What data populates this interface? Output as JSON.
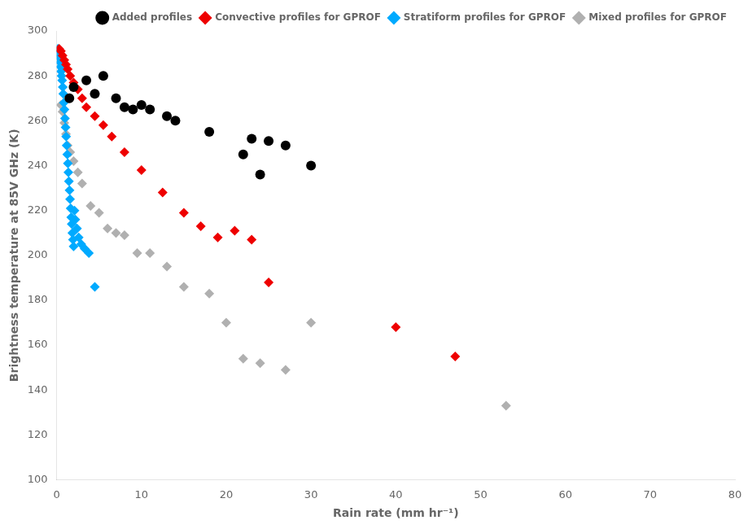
{
  "chart_data": {
    "type": "scatter",
    "x_label": "Rain rate (mm hr⁻¹)",
    "y_label": "Brightness temperature at 85V GHz (K)",
    "xlim": [
      0,
      80
    ],
    "ylim": [
      100,
      300
    ],
    "xticks": [
      0,
      10,
      20,
      30,
      40,
      50,
      60,
      70,
      80
    ],
    "yticks": [
      100,
      120,
      140,
      160,
      180,
      200,
      220,
      240,
      260,
      280,
      300
    ],
    "grid": false,
    "legend": "upper right",
    "series": [
      {
        "name": "Added profiles",
        "color": "#000000",
        "marker": "circle",
        "x": [
          1.5,
          2.0,
          3.5,
          4.5,
          5.5,
          7.0,
          8.0,
          9.0,
          10.0,
          11.0,
          13.0,
          14.0,
          18.0,
          22.0,
          23.0,
          24.0,
          25.0,
          27.0,
          30.0
        ],
        "values": [
          270,
          275,
          278,
          272,
          280,
          270,
          266,
          265,
          267,
          265,
          262,
          260,
          255,
          245,
          252,
          236,
          251,
          249,
          240
        ]
      },
      {
        "name": "Convective profiles for GPROF",
        "color": "#ee0000",
        "marker": "diamond",
        "x": [
          0.3,
          0.5,
          0.7,
          0.9,
          1.1,
          1.3,
          1.6,
          2.0,
          2.5,
          3.0,
          3.5,
          4.5,
          5.5,
          6.5,
          8.0,
          10.0,
          12.5,
          15.0,
          17.0,
          19.0,
          21.0,
          23.0,
          25.0,
          40.0,
          47.0
        ],
        "values": [
          292,
          291,
          289,
          287,
          285,
          283,
          280,
          277,
          274,
          270,
          266,
          262,
          258,
          253,
          246,
          238,
          228,
          219,
          213,
          208,
          211,
          207,
          188,
          168,
          155
        ]
      },
      {
        "name": "Stratiform profiles for GPROF",
        "color": "#00aaff",
        "marker": "diamond",
        "x": [
          0.15,
          0.25,
          0.32,
          0.38,
          0.45,
          0.52,
          0.58,
          0.65,
          0.72,
          0.78,
          0.85,
          0.92,
          0.98,
          1.05,
          1.12,
          1.18,
          1.25,
          1.32,
          1.38,
          1.45,
          1.52,
          1.58,
          1.65,
          1.72,
          1.78,
          1.85,
          1.92,
          2.0,
          2.1,
          2.2,
          2.4,
          2.6,
          2.9,
          3.3,
          3.8,
          4.5
        ],
        "values": [
          292,
          290,
          288,
          286,
          284,
          282,
          280,
          278,
          275,
          272,
          268,
          265,
          261,
          257,
          253,
          249,
          245,
          241,
          237,
          233,
          229,
          225,
          221,
          217,
          214,
          210,
          207,
          204,
          220,
          216,
          212,
          208,
          205,
          203,
          201,
          186
        ]
      },
      {
        "name": "Mixed profiles for GPROF",
        "color": "#b0b0b0",
        "marker": "diamond",
        "x": [
          0.5,
          0.7,
          0.9,
          1.1,
          1.3,
          1.6,
          2.0,
          2.5,
          3.0,
          4.0,
          5.0,
          6.0,
          7.0,
          8.0,
          9.5,
          11.0,
          13.0,
          15.0,
          18.0,
          20.0,
          22.0,
          24.0,
          27.0,
          30.0,
          53.0
        ],
        "values": [
          267,
          264,
          259,
          254,
          249,
          246,
          242,
          237,
          232,
          222,
          219,
          212,
          210,
          209,
          201,
          201,
          195,
          186,
          183,
          170,
          154,
          152,
          149,
          170,
          133
        ]
      }
    ]
  }
}
